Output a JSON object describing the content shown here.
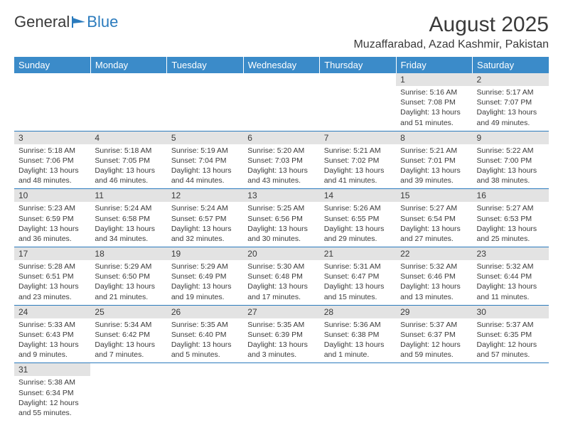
{
  "logo": {
    "general": "General",
    "blue": "Blue"
  },
  "title": "August 2025",
  "location": "Muzaffarabad, Azad Kashmir, Pakistan",
  "day_headers": [
    "Sunday",
    "Monday",
    "Tuesday",
    "Wednesday",
    "Thursday",
    "Friday",
    "Saturday"
  ],
  "colors": {
    "header_bg": "#3b8bc9",
    "daynum_bg": "#e3e3e3",
    "rule": "#2b7bbd",
    "text": "#3a3a3a"
  },
  "weeks": [
    [
      null,
      null,
      null,
      null,
      null,
      {
        "n": "1",
        "sr": "Sunrise: 5:16 AM",
        "ss": "Sunset: 7:08 PM",
        "dl1": "Daylight: 13 hours",
        "dl2": "and 51 minutes."
      },
      {
        "n": "2",
        "sr": "Sunrise: 5:17 AM",
        "ss": "Sunset: 7:07 PM",
        "dl1": "Daylight: 13 hours",
        "dl2": "and 49 minutes."
      }
    ],
    [
      {
        "n": "3",
        "sr": "Sunrise: 5:18 AM",
        "ss": "Sunset: 7:06 PM",
        "dl1": "Daylight: 13 hours",
        "dl2": "and 48 minutes."
      },
      {
        "n": "4",
        "sr": "Sunrise: 5:18 AM",
        "ss": "Sunset: 7:05 PM",
        "dl1": "Daylight: 13 hours",
        "dl2": "and 46 minutes."
      },
      {
        "n": "5",
        "sr": "Sunrise: 5:19 AM",
        "ss": "Sunset: 7:04 PM",
        "dl1": "Daylight: 13 hours",
        "dl2": "and 44 minutes."
      },
      {
        "n": "6",
        "sr": "Sunrise: 5:20 AM",
        "ss": "Sunset: 7:03 PM",
        "dl1": "Daylight: 13 hours",
        "dl2": "and 43 minutes."
      },
      {
        "n": "7",
        "sr": "Sunrise: 5:21 AM",
        "ss": "Sunset: 7:02 PM",
        "dl1": "Daylight: 13 hours",
        "dl2": "and 41 minutes."
      },
      {
        "n": "8",
        "sr": "Sunrise: 5:21 AM",
        "ss": "Sunset: 7:01 PM",
        "dl1": "Daylight: 13 hours",
        "dl2": "and 39 minutes."
      },
      {
        "n": "9",
        "sr": "Sunrise: 5:22 AM",
        "ss": "Sunset: 7:00 PM",
        "dl1": "Daylight: 13 hours",
        "dl2": "and 38 minutes."
      }
    ],
    [
      {
        "n": "10",
        "sr": "Sunrise: 5:23 AM",
        "ss": "Sunset: 6:59 PM",
        "dl1": "Daylight: 13 hours",
        "dl2": "and 36 minutes."
      },
      {
        "n": "11",
        "sr": "Sunrise: 5:24 AM",
        "ss": "Sunset: 6:58 PM",
        "dl1": "Daylight: 13 hours",
        "dl2": "and 34 minutes."
      },
      {
        "n": "12",
        "sr": "Sunrise: 5:24 AM",
        "ss": "Sunset: 6:57 PM",
        "dl1": "Daylight: 13 hours",
        "dl2": "and 32 minutes."
      },
      {
        "n": "13",
        "sr": "Sunrise: 5:25 AM",
        "ss": "Sunset: 6:56 PM",
        "dl1": "Daylight: 13 hours",
        "dl2": "and 30 minutes."
      },
      {
        "n": "14",
        "sr": "Sunrise: 5:26 AM",
        "ss": "Sunset: 6:55 PM",
        "dl1": "Daylight: 13 hours",
        "dl2": "and 29 minutes."
      },
      {
        "n": "15",
        "sr": "Sunrise: 5:27 AM",
        "ss": "Sunset: 6:54 PM",
        "dl1": "Daylight: 13 hours",
        "dl2": "and 27 minutes."
      },
      {
        "n": "16",
        "sr": "Sunrise: 5:27 AM",
        "ss": "Sunset: 6:53 PM",
        "dl1": "Daylight: 13 hours",
        "dl2": "and 25 minutes."
      }
    ],
    [
      {
        "n": "17",
        "sr": "Sunrise: 5:28 AM",
        "ss": "Sunset: 6:51 PM",
        "dl1": "Daylight: 13 hours",
        "dl2": "and 23 minutes."
      },
      {
        "n": "18",
        "sr": "Sunrise: 5:29 AM",
        "ss": "Sunset: 6:50 PM",
        "dl1": "Daylight: 13 hours",
        "dl2": "and 21 minutes."
      },
      {
        "n": "19",
        "sr": "Sunrise: 5:29 AM",
        "ss": "Sunset: 6:49 PM",
        "dl1": "Daylight: 13 hours",
        "dl2": "and 19 minutes."
      },
      {
        "n": "20",
        "sr": "Sunrise: 5:30 AM",
        "ss": "Sunset: 6:48 PM",
        "dl1": "Daylight: 13 hours",
        "dl2": "and 17 minutes."
      },
      {
        "n": "21",
        "sr": "Sunrise: 5:31 AM",
        "ss": "Sunset: 6:47 PM",
        "dl1": "Daylight: 13 hours",
        "dl2": "and 15 minutes."
      },
      {
        "n": "22",
        "sr": "Sunrise: 5:32 AM",
        "ss": "Sunset: 6:46 PM",
        "dl1": "Daylight: 13 hours",
        "dl2": "and 13 minutes."
      },
      {
        "n": "23",
        "sr": "Sunrise: 5:32 AM",
        "ss": "Sunset: 6:44 PM",
        "dl1": "Daylight: 13 hours",
        "dl2": "and 11 minutes."
      }
    ],
    [
      {
        "n": "24",
        "sr": "Sunrise: 5:33 AM",
        "ss": "Sunset: 6:43 PM",
        "dl1": "Daylight: 13 hours",
        "dl2": "and 9 minutes."
      },
      {
        "n": "25",
        "sr": "Sunrise: 5:34 AM",
        "ss": "Sunset: 6:42 PM",
        "dl1": "Daylight: 13 hours",
        "dl2": "and 7 minutes."
      },
      {
        "n": "26",
        "sr": "Sunrise: 5:35 AM",
        "ss": "Sunset: 6:40 PM",
        "dl1": "Daylight: 13 hours",
        "dl2": "and 5 minutes."
      },
      {
        "n": "27",
        "sr": "Sunrise: 5:35 AM",
        "ss": "Sunset: 6:39 PM",
        "dl1": "Daylight: 13 hours",
        "dl2": "and 3 minutes."
      },
      {
        "n": "28",
        "sr": "Sunrise: 5:36 AM",
        "ss": "Sunset: 6:38 PM",
        "dl1": "Daylight: 13 hours",
        "dl2": "and 1 minute."
      },
      {
        "n": "29",
        "sr": "Sunrise: 5:37 AM",
        "ss": "Sunset: 6:37 PM",
        "dl1": "Daylight: 12 hours",
        "dl2": "and 59 minutes."
      },
      {
        "n": "30",
        "sr": "Sunrise: 5:37 AM",
        "ss": "Sunset: 6:35 PM",
        "dl1": "Daylight: 12 hours",
        "dl2": "and 57 minutes."
      }
    ],
    [
      {
        "n": "31",
        "sr": "Sunrise: 5:38 AM",
        "ss": "Sunset: 6:34 PM",
        "dl1": "Daylight: 12 hours",
        "dl2": "and 55 minutes."
      },
      null,
      null,
      null,
      null,
      null,
      null
    ]
  ]
}
